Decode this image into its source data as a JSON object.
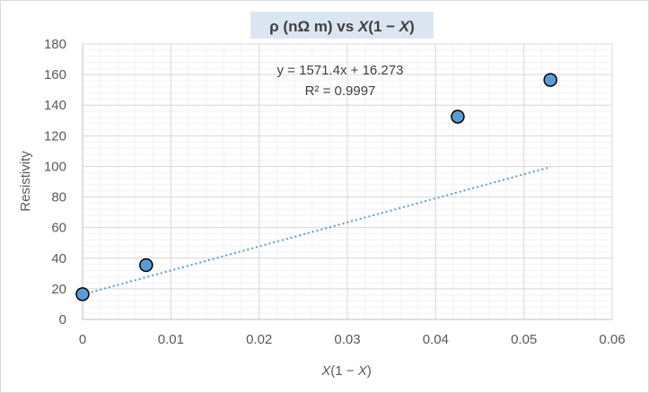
{
  "chart_data": {
    "type": "scatter",
    "title_parts": [
      "ρ (nΩ m) vs ",
      "X",
      "(1 − ",
      "X",
      ")"
    ],
    "xlabel_parts": [
      "X",
      "(1 − ",
      "X",
      ")"
    ],
    "ylabel": "Resistivity",
    "xlim": [
      0,
      0.06
    ],
    "ylim": [
      0,
      180
    ],
    "x_ticks": [
      0,
      0.01,
      0.02,
      0.03,
      0.04,
      0.05,
      0.06
    ],
    "x_tick_labels": [
      "0",
      "0.01",
      "0.02",
      "0.03",
      "0.04",
      "0.05",
      "0.06"
    ],
    "y_ticks": [
      0,
      20,
      40,
      60,
      80,
      100,
      120,
      140,
      160,
      180
    ],
    "y_tick_labels": [
      "0",
      "20",
      "40",
      "60",
      "80",
      "100",
      "120",
      "140",
      "160",
      "180"
    ],
    "grid": "major and minor",
    "series": [
      {
        "points": [
          {
            "x": 0.0,
            "y": 16.5
          },
          {
            "x": 0.0072,
            "y": 35.5
          },
          {
            "x": 0.0425,
            "y": 132.5
          },
          {
            "x": 0.053,
            "y": 156.5
          }
        ],
        "marker_color": "#5b9bd5",
        "marker_edge": "#000000"
      }
    ],
    "trendline": {
      "type": "linear",
      "slope": 1571.4,
      "intercept": 16.273,
      "x_range": [
        0,
        0.053
      ],
      "color": "#5b9bd5",
      "style": "dotted",
      "equation": "y = 1571.4x + 16.273",
      "r_squared": "R² = 0.9997"
    },
    "title_background": "#dce6f2"
  }
}
